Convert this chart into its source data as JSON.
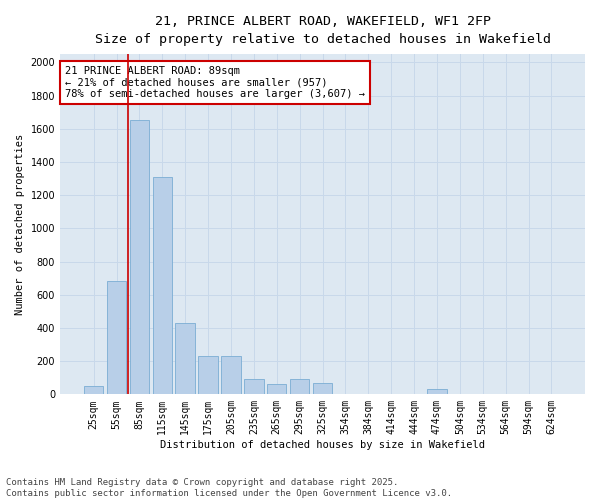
{
  "title_line1": "21, PRINCE ALBERT ROAD, WAKEFIELD, WF1 2FP",
  "title_line2": "Size of property relative to detached houses in Wakefield",
  "xlabel": "Distribution of detached houses by size in Wakefield",
  "ylabel": "Number of detached properties",
  "categories": [
    "25sqm",
    "55sqm",
    "85sqm",
    "115sqm",
    "145sqm",
    "175sqm",
    "205sqm",
    "235sqm",
    "265sqm",
    "295sqm",
    "325sqm",
    "354sqm",
    "384sqm",
    "414sqm",
    "444sqm",
    "474sqm",
    "504sqm",
    "534sqm",
    "564sqm",
    "594sqm",
    "624sqm"
  ],
  "values": [
    50,
    680,
    1650,
    1310,
    430,
    230,
    230,
    90,
    60,
    90,
    70,
    0,
    0,
    0,
    0,
    30,
    0,
    0,
    0,
    0,
    0
  ],
  "bar_color": "#b8cfe8",
  "bar_edge_color": "#7aadd4",
  "vline_color": "#cc0000",
  "vline_x_index": 2,
  "annotation_line1": "21 PRINCE ALBERT ROAD: 89sqm",
  "annotation_line2": "← 21% of detached houses are smaller (957)",
  "annotation_line3": "78% of semi-detached houses are larger (3,607) →",
  "annotation_box_edgecolor": "#cc0000",
  "annotation_box_facecolor": "white",
  "ylim_max": 2050,
  "yticks": [
    0,
    200,
    400,
    600,
    800,
    1000,
    1200,
    1400,
    1600,
    1800,
    2000
  ],
  "grid_color": "#c8d8ea",
  "background_color": "#dde8f2",
  "footer_line1": "Contains HM Land Registry data © Crown copyright and database right 2025.",
  "footer_line2": "Contains public sector information licensed under the Open Government Licence v3.0.",
  "title_fontsize": 9.5,
  "subtitle_fontsize": 8.5,
  "axis_label_fontsize": 7.5,
  "tick_fontsize": 7,
  "annotation_fontsize": 7.5,
  "footer_fontsize": 6.5,
  "ylabel_fontsize": 7.5
}
